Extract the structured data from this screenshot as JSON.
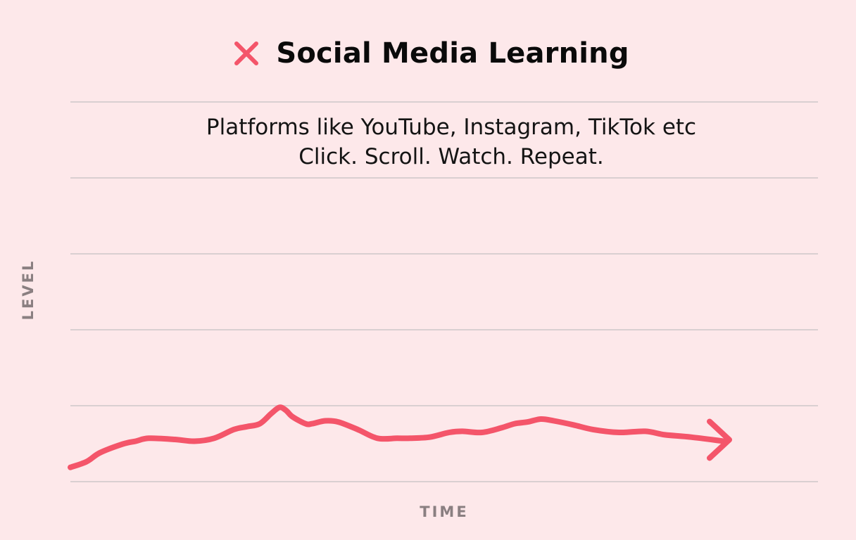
{
  "chart_data": {
    "type": "line",
    "title": "Social Media Learning",
    "title_icon": "x-mark-icon",
    "subtitle_lines": [
      "Platforms like YouTube, Instagram, TikTok etc",
      "Click. Scroll. Watch. Repeat."
    ],
    "xlabel": "TIME",
    "ylabel": "LEVEL",
    "xlim": [
      0,
      100
    ],
    "ylim": [
      0,
      6
    ],
    "grid": true,
    "series": [
      {
        "color": "#f4556a",
        "end_marker": "arrow",
        "x": [
          0,
          2.5,
          4.5,
          8,
          10,
          12,
          16,
          19,
          22,
          25,
          27,
          29,
          30.7,
          32,
          33,
          34,
          36,
          37,
          39,
          41,
          44,
          47,
          50,
          52,
          55,
          58,
          60,
          63,
          66,
          68,
          70,
          72,
          74,
          77,
          80,
          84,
          88,
          91,
          95,
          100
        ],
        "y": [
          0.1,
          0.2,
          0.35,
          0.5,
          0.55,
          0.6,
          0.58,
          0.55,
          0.6,
          0.75,
          0.8,
          0.85,
          1.02,
          1.13,
          1.08,
          0.97,
          0.85,
          0.85,
          0.9,
          0.88,
          0.75,
          0.6,
          0.6,
          0.6,
          0.62,
          0.7,
          0.72,
          0.7,
          0.78,
          0.85,
          0.88,
          0.93,
          0.9,
          0.83,
          0.75,
          0.7,
          0.72,
          0.66,
          0.62,
          0.55
        ]
      }
    ]
  }
}
